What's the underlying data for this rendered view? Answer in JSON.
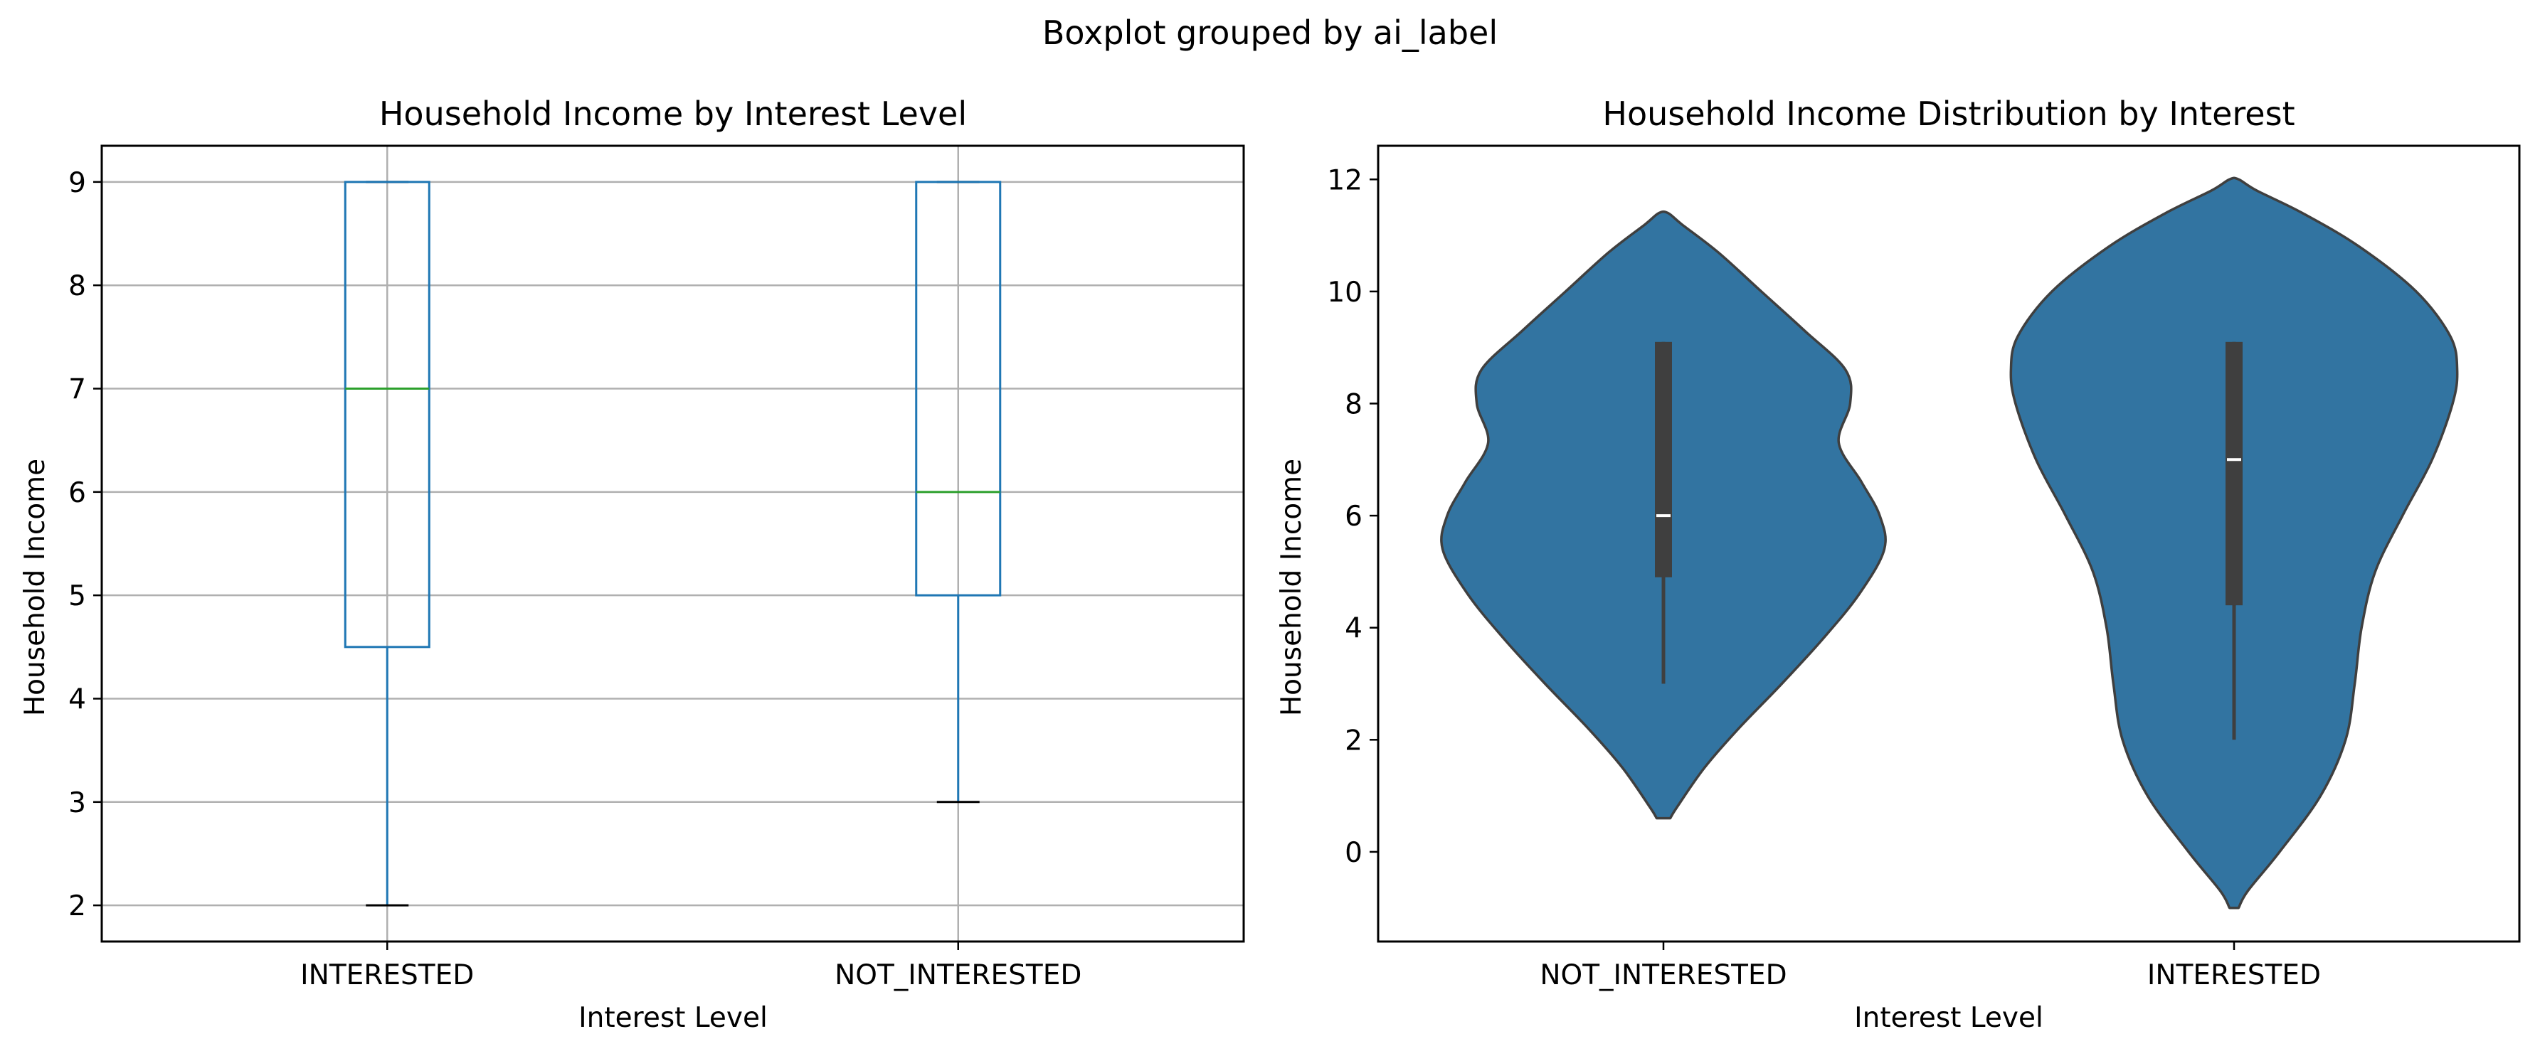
{
  "figure": {
    "suptitle": "Boxplot grouped by ai_label"
  },
  "colors": {
    "box": "#1f77b4",
    "median": "#2ca02c",
    "violin": "#3274a1",
    "violin_edge": "#3f3f3f",
    "inner_box": "#3f3f3f",
    "grid": "#b0b0b0"
  },
  "chart_data": [
    {
      "type": "box",
      "title": "Household Income by Interest Level",
      "xlabel": "Interest Level",
      "ylabel": "Household Income",
      "categories": [
        "INTERESTED",
        "NOT_INTERESTED"
      ],
      "boxes": [
        {
          "name": "INTERESTED",
          "whisker_low": 2,
          "q1": 4.5,
          "median": 7,
          "q3": 9,
          "whisker_high": 9
        },
        {
          "name": "NOT_INTERESTED",
          "whisker_low": 3,
          "q1": 5,
          "median": 6,
          "q3": 9,
          "whisker_high": 9
        }
      ],
      "ylim": [
        1.65,
        9.35
      ],
      "yticks": [
        2,
        3,
        4,
        5,
        6,
        7,
        8,
        9
      ],
      "grid": true
    },
    {
      "type": "violin",
      "title": "Household Income Distribution by Interest",
      "xlabel": "Interest Level",
      "ylabel": "Household Income",
      "categories": [
        "NOT_INTERESTED",
        "INTERESTED"
      ],
      "violins": [
        {
          "name": "NOT_INTERESTED",
          "min": 0.6,
          "max": 11.4,
          "whisker_low": 3,
          "q1": 4.9,
          "median": 6,
          "q3": 9.1,
          "whisker_high": 9.1,
          "density": [
            [
              0.6,
              0.03
            ],
            [
              0.8,
              0.06
            ],
            [
              1.5,
              0.18
            ],
            [
              2.2,
              0.33
            ],
            [
              3.0,
              0.52
            ],
            [
              3.8,
              0.7
            ],
            [
              4.6,
              0.86
            ],
            [
              5.4,
              0.97
            ],
            [
              6.0,
              0.95
            ],
            [
              6.6,
              0.87
            ],
            [
              7.3,
              0.77
            ],
            [
              8.0,
              0.82
            ],
            [
              8.6,
              0.8
            ],
            [
              9.3,
              0.62
            ],
            [
              10.0,
              0.43
            ],
            [
              10.7,
              0.24
            ],
            [
              11.2,
              0.08
            ],
            [
              11.4,
              0.02
            ]
          ]
        },
        {
          "name": "INTERESTED",
          "min": -1.0,
          "max": 12.0,
          "whisker_low": 2,
          "q1": 4.4,
          "median": 7,
          "q3": 9.1,
          "whisker_high": 9.1,
          "density": [
            [
              -1.0,
              0.02
            ],
            [
              -0.7,
              0.06
            ],
            [
              0.0,
              0.2
            ],
            [
              1.0,
              0.38
            ],
            [
              2.0,
              0.49
            ],
            [
              3.0,
              0.53
            ],
            [
              4.0,
              0.56
            ],
            [
              5.0,
              0.62
            ],
            [
              6.0,
              0.74
            ],
            [
              7.0,
              0.87
            ],
            [
              8.0,
              0.96
            ],
            [
              8.6,
              0.98
            ],
            [
              9.2,
              0.95
            ],
            [
              10.0,
              0.8
            ],
            [
              10.8,
              0.55
            ],
            [
              11.4,
              0.3
            ],
            [
              11.8,
              0.1
            ],
            [
              12.0,
              0.02
            ]
          ]
        }
      ],
      "ylim": [
        -1.6,
        12.6
      ],
      "yticks": [
        0,
        2,
        4,
        6,
        8,
        10,
        12
      ],
      "grid": false
    }
  ]
}
